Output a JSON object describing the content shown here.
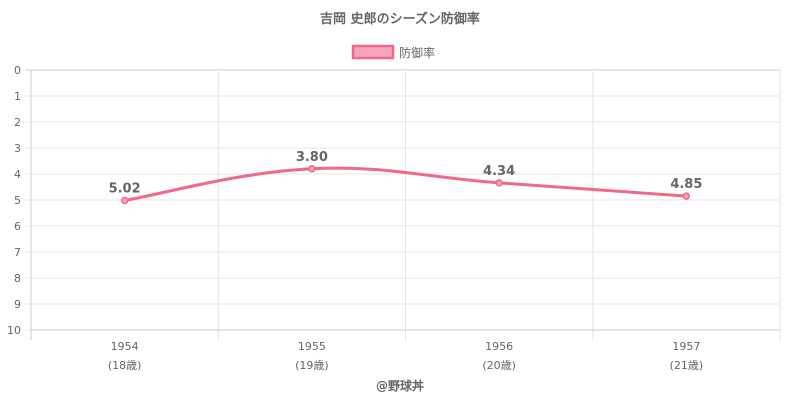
{
  "chart_data": {
    "type": "line",
    "title": "吉岡 史郎のシーズン防御率",
    "categories": [
      "1954",
      "1955",
      "1956",
      "1957"
    ],
    "category_sublabels": [
      "(18歳)",
      "(19歳)",
      "(20歳)",
      "(21歳)"
    ],
    "series": [
      {
        "name": "防御率",
        "values": [
          5.02,
          3.8,
          4.34,
          4.85
        ],
        "data_labels": [
          "5.02",
          "3.80",
          "4.34",
          "4.85"
        ]
      }
    ],
    "y_ticks": [
      "0",
      "1",
      "2",
      "3",
      "4",
      "5",
      "6",
      "7",
      "8",
      "9",
      "10"
    ],
    "ylim": [
      0,
      10
    ],
    "y_reversed": true,
    "grid": true,
    "legend_position": "top-center",
    "line_color": "#f0698a",
    "fill_color": "#f6a6bb",
    "credit": "@野球丼"
  }
}
